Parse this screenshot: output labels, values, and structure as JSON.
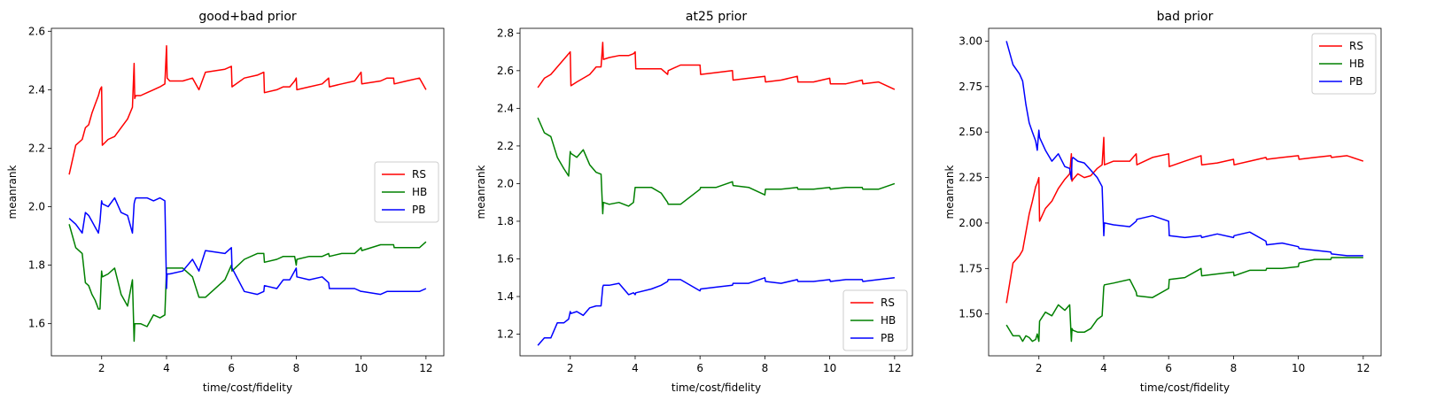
{
  "chart_data": [
    {
      "type": "line",
      "title": "good+bad prior",
      "xlabel": "time/cost/fidelity",
      "ylabel": "meanrank",
      "xlim": [
        0.45,
        12.55
      ],
      "ylim": [
        1.49,
        2.61
      ],
      "xticks": [
        2,
        4,
        6,
        8,
        10,
        12
      ],
      "xtick_labels": [
        "2",
        "4",
        "6",
        "8",
        "10",
        "12"
      ],
      "yticks": [
        1.6,
        1.8,
        2.0,
        2.2,
        2.4,
        2.6
      ],
      "ytick_labels": [
        "1.6",
        "1.8",
        "2.0",
        "2.2",
        "2.4",
        "2.6"
      ],
      "grid": false,
      "legend": "center-right",
      "series": [
        {
          "name": "RS",
          "color": "#ff0000",
          "x": [
            1.0,
            1.2,
            1.4,
            1.5,
            1.6,
            1.7,
            1.8,
            1.9,
            1.95,
            2.0,
            2.02,
            2.2,
            2.4,
            2.6,
            2.8,
            2.95,
            3.0,
            3.02,
            3.05,
            3.2,
            3.4,
            3.6,
            3.8,
            3.95,
            4.0,
            4.02,
            4.1,
            4.5,
            4.8,
            5.0,
            5.2,
            5.8,
            6.0,
            6.02,
            6.4,
            6.8,
            7.0,
            7.02,
            7.4,
            7.6,
            7.8,
            7.95,
            8.0,
            8.02,
            8.4,
            8.8,
            9.0,
            9.02,
            9.4,
            9.8,
            10.0,
            10.02,
            10.6,
            10.8,
            11.0,
            11.02,
            11.4,
            11.8,
            12.0
          ],
          "y": [
            2.11,
            2.21,
            2.23,
            2.27,
            2.28,
            2.32,
            2.35,
            2.38,
            2.4,
            2.41,
            2.21,
            2.23,
            2.24,
            2.27,
            2.3,
            2.34,
            2.49,
            2.37,
            2.38,
            2.38,
            2.39,
            2.4,
            2.41,
            2.42,
            2.55,
            2.44,
            2.43,
            2.43,
            2.44,
            2.4,
            2.46,
            2.47,
            2.48,
            2.41,
            2.44,
            2.45,
            2.46,
            2.39,
            2.4,
            2.41,
            2.41,
            2.43,
            2.44,
            2.4,
            2.41,
            2.42,
            2.44,
            2.41,
            2.42,
            2.43,
            2.46,
            2.42,
            2.43,
            2.44,
            2.44,
            2.42,
            2.43,
            2.44,
            2.4
          ]
        },
        {
          "name": "HB",
          "color": "#008000",
          "x": [
            1.0,
            1.2,
            1.4,
            1.5,
            1.6,
            1.7,
            1.8,
            1.9,
            1.95,
            2.0,
            2.02,
            2.2,
            2.4,
            2.6,
            2.8,
            2.95,
            3.0,
            3.02,
            3.05,
            3.2,
            3.4,
            3.6,
            3.8,
            3.95,
            4.0,
            4.02,
            4.1,
            4.5,
            4.8,
            5.0,
            5.2,
            5.8,
            6.0,
            6.02,
            6.4,
            6.8,
            7.0,
            7.02,
            7.4,
            7.6,
            7.8,
            7.95,
            8.0,
            8.02,
            8.4,
            8.8,
            9.0,
            9.02,
            9.4,
            9.8,
            10.0,
            10.02,
            10.6,
            10.8,
            11.0,
            11.02,
            11.4,
            11.8,
            12.0
          ],
          "y": [
            1.94,
            1.86,
            1.84,
            1.74,
            1.73,
            1.7,
            1.68,
            1.65,
            1.65,
            1.78,
            1.76,
            1.77,
            1.79,
            1.7,
            1.66,
            1.75,
            1.54,
            1.6,
            1.6,
            1.6,
            1.59,
            1.63,
            1.62,
            1.63,
            1.79,
            1.79,
            1.79,
            1.79,
            1.76,
            1.69,
            1.69,
            1.75,
            1.8,
            1.78,
            1.82,
            1.84,
            1.84,
            1.81,
            1.82,
            1.83,
            1.83,
            1.83,
            1.8,
            1.82,
            1.83,
            1.83,
            1.84,
            1.83,
            1.84,
            1.84,
            1.86,
            1.85,
            1.87,
            1.87,
            1.87,
            1.86,
            1.86,
            1.86,
            1.88
          ]
        },
        {
          "name": "PB",
          "color": "#0000ff",
          "x": [
            1.0,
            1.2,
            1.4,
            1.5,
            1.6,
            1.7,
            1.8,
            1.9,
            1.95,
            2.0,
            2.02,
            2.2,
            2.4,
            2.6,
            2.8,
            2.95,
            3.0,
            3.02,
            3.05,
            3.2,
            3.4,
            3.6,
            3.8,
            3.95,
            4.0,
            4.02,
            4.1,
            4.5,
            4.8,
            5.0,
            5.2,
            5.8,
            6.0,
            6.02,
            6.4,
            6.8,
            7.0,
            7.02,
            7.4,
            7.6,
            7.8,
            7.95,
            8.0,
            8.02,
            8.4,
            8.8,
            9.0,
            9.02,
            9.4,
            9.8,
            10.0,
            10.02,
            10.6,
            10.8,
            11.0,
            11.02,
            11.4,
            11.8,
            12.0
          ],
          "y": [
            1.96,
            1.94,
            1.91,
            1.98,
            1.97,
            1.95,
            1.93,
            1.91,
            1.95,
            2.02,
            2.01,
            2.0,
            2.03,
            1.98,
            1.97,
            1.91,
            2.01,
            2.02,
            2.03,
            2.03,
            2.03,
            2.02,
            2.03,
            2.02,
            1.72,
            1.77,
            1.77,
            1.78,
            1.82,
            1.78,
            1.85,
            1.84,
            1.86,
            1.79,
            1.71,
            1.7,
            1.71,
            1.73,
            1.72,
            1.75,
            1.75,
            1.78,
            1.79,
            1.76,
            1.75,
            1.76,
            1.74,
            1.72,
            1.72,
            1.72,
            1.71,
            1.71,
            1.7,
            1.71,
            1.71,
            1.71,
            1.71,
            1.71,
            1.72
          ]
        }
      ]
    },
    {
      "type": "line",
      "title": "at25 prior",
      "xlabel": "time/cost/fidelity",
      "ylabel": "meanrank",
      "xlim": [
        0.45,
        12.55
      ],
      "ylim": [
        1.085,
        2.825
      ],
      "xticks": [
        2,
        4,
        6,
        8,
        10,
        12
      ],
      "xtick_labels": [
        "2",
        "4",
        "6",
        "8",
        "10",
        "12"
      ],
      "yticks": [
        1.2,
        1.4,
        1.6,
        1.8,
        2.0,
        2.2,
        2.4,
        2.6,
        2.8
      ],
      "ytick_labels": [
        "1.2",
        "1.4",
        "1.6",
        "1.8",
        "2.0",
        "2.2",
        "2.4",
        "2.6",
        "2.8"
      ],
      "grid": false,
      "legend": "lower-right",
      "series": [
        {
          "name": "RS",
          "color": "#ff0000",
          "x": [
            1.0,
            1.2,
            1.4,
            1.6,
            1.8,
            1.95,
            2.0,
            2.02,
            2.2,
            2.4,
            2.6,
            2.8,
            2.95,
            3.0,
            3.02,
            3.2,
            3.5,
            3.8,
            3.95,
            4.0,
            4.02,
            4.5,
            4.8,
            5.0,
            5.02,
            5.4,
            6.0,
            6.02,
            6.5,
            7.0,
            7.02,
            7.5,
            8.0,
            8.02,
            8.5,
            9.0,
            9.02,
            9.5,
            10.0,
            10.02,
            10.5,
            11.0,
            11.02,
            11.5,
            12.0
          ],
          "y": [
            2.51,
            2.56,
            2.58,
            2.62,
            2.66,
            2.69,
            2.7,
            2.52,
            2.54,
            2.56,
            2.58,
            2.62,
            2.62,
            2.75,
            2.66,
            2.67,
            2.68,
            2.68,
            2.69,
            2.7,
            2.61,
            2.61,
            2.61,
            2.58,
            2.6,
            2.63,
            2.63,
            2.58,
            2.59,
            2.6,
            2.55,
            2.56,
            2.57,
            2.54,
            2.55,
            2.57,
            2.54,
            2.54,
            2.56,
            2.53,
            2.53,
            2.55,
            2.53,
            2.54,
            2.5
          ]
        },
        {
          "name": "HB",
          "color": "#008000",
          "x": [
            1.0,
            1.2,
            1.4,
            1.6,
            1.8,
            1.95,
            2.0,
            2.02,
            2.2,
            2.4,
            2.6,
            2.8,
            2.95,
            3.0,
            3.02,
            3.2,
            3.5,
            3.8,
            3.95,
            4.0,
            4.02,
            4.5,
            4.8,
            5.0,
            5.02,
            5.4,
            6.0,
            6.02,
            6.5,
            7.0,
            7.02,
            7.5,
            8.0,
            8.02,
            8.5,
            9.0,
            9.02,
            9.5,
            10.0,
            10.02,
            10.5,
            11.0,
            11.02,
            11.5,
            12.0
          ],
          "y": [
            2.35,
            2.27,
            2.25,
            2.14,
            2.08,
            2.04,
            2.17,
            2.16,
            2.14,
            2.18,
            2.1,
            2.06,
            2.05,
            1.84,
            1.9,
            1.89,
            1.9,
            1.88,
            1.9,
            1.98,
            1.98,
            1.98,
            1.95,
            1.9,
            1.89,
            1.89,
            1.97,
            1.98,
            1.98,
            2.01,
            1.99,
            1.98,
            1.94,
            1.97,
            1.97,
            1.98,
            1.97,
            1.97,
            1.98,
            1.97,
            1.98,
            1.98,
            1.97,
            1.97,
            2.0
          ]
        },
        {
          "name": "PB",
          "color": "#0000ff",
          "x": [
            1.0,
            1.2,
            1.4,
            1.6,
            1.8,
            1.95,
            2.0,
            2.02,
            2.2,
            2.4,
            2.6,
            2.8,
            2.95,
            3.0,
            3.02,
            3.2,
            3.5,
            3.8,
            3.95,
            4.0,
            4.02,
            4.5,
            4.8,
            5.0,
            5.02,
            5.4,
            6.0,
            6.02,
            6.5,
            7.0,
            7.02,
            7.5,
            8.0,
            8.02,
            8.5,
            9.0,
            9.02,
            9.5,
            10.0,
            10.02,
            10.5,
            11.0,
            11.02,
            11.5,
            12.0
          ],
          "y": [
            1.14,
            1.18,
            1.18,
            1.26,
            1.26,
            1.28,
            1.32,
            1.31,
            1.32,
            1.3,
            1.34,
            1.35,
            1.35,
            1.45,
            1.46,
            1.46,
            1.47,
            1.41,
            1.42,
            1.41,
            1.42,
            1.44,
            1.46,
            1.48,
            1.49,
            1.49,
            1.43,
            1.44,
            1.45,
            1.46,
            1.47,
            1.47,
            1.5,
            1.48,
            1.47,
            1.49,
            1.48,
            1.48,
            1.49,
            1.48,
            1.49,
            1.49,
            1.48,
            1.49,
            1.5
          ]
        }
      ]
    },
    {
      "type": "line",
      "title": "bad prior",
      "xlabel": "time/cost/fidelity",
      "ylabel": "meanrank",
      "xlim": [
        0.45,
        12.55
      ],
      "ylim": [
        1.27,
        3.07
      ],
      "xticks": [
        2,
        4,
        6,
        8,
        10,
        12
      ],
      "xtick_labels": [
        "2",
        "4",
        "6",
        "8",
        "10",
        "12"
      ],
      "yticks": [
        1.5,
        1.75,
        2.0,
        2.25,
        2.5,
        2.75,
        3.0
      ],
      "ytick_labels": [
        "1.50",
        "1.75",
        "2.00",
        "2.25",
        "2.50",
        "2.75",
        "3.00"
      ],
      "grid": false,
      "legend": "top-right",
      "series": [
        {
          "name": "RS",
          "color": "#ff0000",
          "x": [
            1.0,
            1.2,
            1.4,
            1.5,
            1.6,
            1.7,
            1.8,
            1.9,
            1.95,
            2.0,
            2.02,
            2.2,
            2.4,
            2.6,
            2.8,
            2.95,
            3.0,
            3.02,
            3.05,
            3.2,
            3.4,
            3.6,
            3.8,
            3.95,
            4.0,
            4.02,
            4.3,
            4.8,
            5.0,
            5.02,
            5.5,
            6.0,
            6.02,
            6.5,
            7.0,
            7.02,
            7.5,
            8.0,
            8.02,
            8.5,
            9.0,
            9.02,
            9.5,
            10.0,
            10.02,
            10.5,
            11.0,
            11.02,
            11.5,
            12.0
          ],
          "y": [
            1.56,
            1.78,
            1.82,
            1.85,
            1.95,
            2.05,
            2.12,
            2.2,
            2.22,
            2.25,
            2.01,
            2.08,
            2.12,
            2.19,
            2.24,
            2.27,
            2.38,
            2.23,
            2.24,
            2.27,
            2.25,
            2.26,
            2.3,
            2.32,
            2.47,
            2.32,
            2.34,
            2.34,
            2.38,
            2.32,
            2.36,
            2.38,
            2.31,
            2.34,
            2.37,
            2.32,
            2.33,
            2.35,
            2.32,
            2.34,
            2.36,
            2.35,
            2.36,
            2.37,
            2.35,
            2.36,
            2.37,
            2.36,
            2.37,
            2.34
          ]
        },
        {
          "name": "HB",
          "color": "#008000",
          "x": [
            1.0,
            1.2,
            1.4,
            1.5,
            1.6,
            1.7,
            1.8,
            1.9,
            1.95,
            2.0,
            2.02,
            2.2,
            2.4,
            2.6,
            2.8,
            2.95,
            3.0,
            3.02,
            3.05,
            3.2,
            3.4,
            3.6,
            3.8,
            3.95,
            4.0,
            4.02,
            4.3,
            4.8,
            5.0,
            5.02,
            5.5,
            6.0,
            6.02,
            6.5,
            7.0,
            7.02,
            7.5,
            8.0,
            8.02,
            8.5,
            9.0,
            9.02,
            9.5,
            10.0,
            10.02,
            10.5,
            11.0,
            11.02,
            11.5,
            12.0
          ],
          "y": [
            1.44,
            1.38,
            1.38,
            1.35,
            1.38,
            1.37,
            1.35,
            1.36,
            1.39,
            1.35,
            1.46,
            1.51,
            1.49,
            1.55,
            1.52,
            1.55,
            1.35,
            1.42,
            1.41,
            1.4,
            1.4,
            1.42,
            1.47,
            1.49,
            1.65,
            1.66,
            1.67,
            1.69,
            1.62,
            1.6,
            1.59,
            1.64,
            1.69,
            1.7,
            1.75,
            1.71,
            1.72,
            1.73,
            1.71,
            1.74,
            1.74,
            1.75,
            1.75,
            1.76,
            1.78,
            1.8,
            1.8,
            1.81,
            1.81,
            1.81
          ]
        },
        {
          "name": "PB",
          "color": "#0000ff",
          "x": [
            1.0,
            1.2,
            1.4,
            1.5,
            1.6,
            1.7,
            1.8,
            1.9,
            1.95,
            2.0,
            2.02,
            2.2,
            2.4,
            2.6,
            2.8,
            2.95,
            3.0,
            3.02,
            3.05,
            3.2,
            3.4,
            3.6,
            3.8,
            3.95,
            4.0,
            4.02,
            4.3,
            4.8,
            5.0,
            5.02,
            5.5,
            6.0,
            6.02,
            6.5,
            7.0,
            7.02,
            7.5,
            8.0,
            8.02,
            8.5,
            9.0,
            9.02,
            9.5,
            10.0,
            10.02,
            10.5,
            11.0,
            11.02,
            11.5,
            12.0
          ],
          "y": [
            3.0,
            2.87,
            2.82,
            2.78,
            2.65,
            2.55,
            2.5,
            2.45,
            2.4,
            2.51,
            2.47,
            2.4,
            2.34,
            2.38,
            2.31,
            2.3,
            2.24,
            2.35,
            2.36,
            2.34,
            2.33,
            2.29,
            2.25,
            2.2,
            1.93,
            2.0,
            1.99,
            1.98,
            2.01,
            2.02,
            2.04,
            2.01,
            1.93,
            1.92,
            1.93,
            1.92,
            1.94,
            1.92,
            1.93,
            1.95,
            1.9,
            1.88,
            1.89,
            1.87,
            1.86,
            1.85,
            1.84,
            1.83,
            1.82,
            1.82
          ]
        }
      ]
    }
  ]
}
